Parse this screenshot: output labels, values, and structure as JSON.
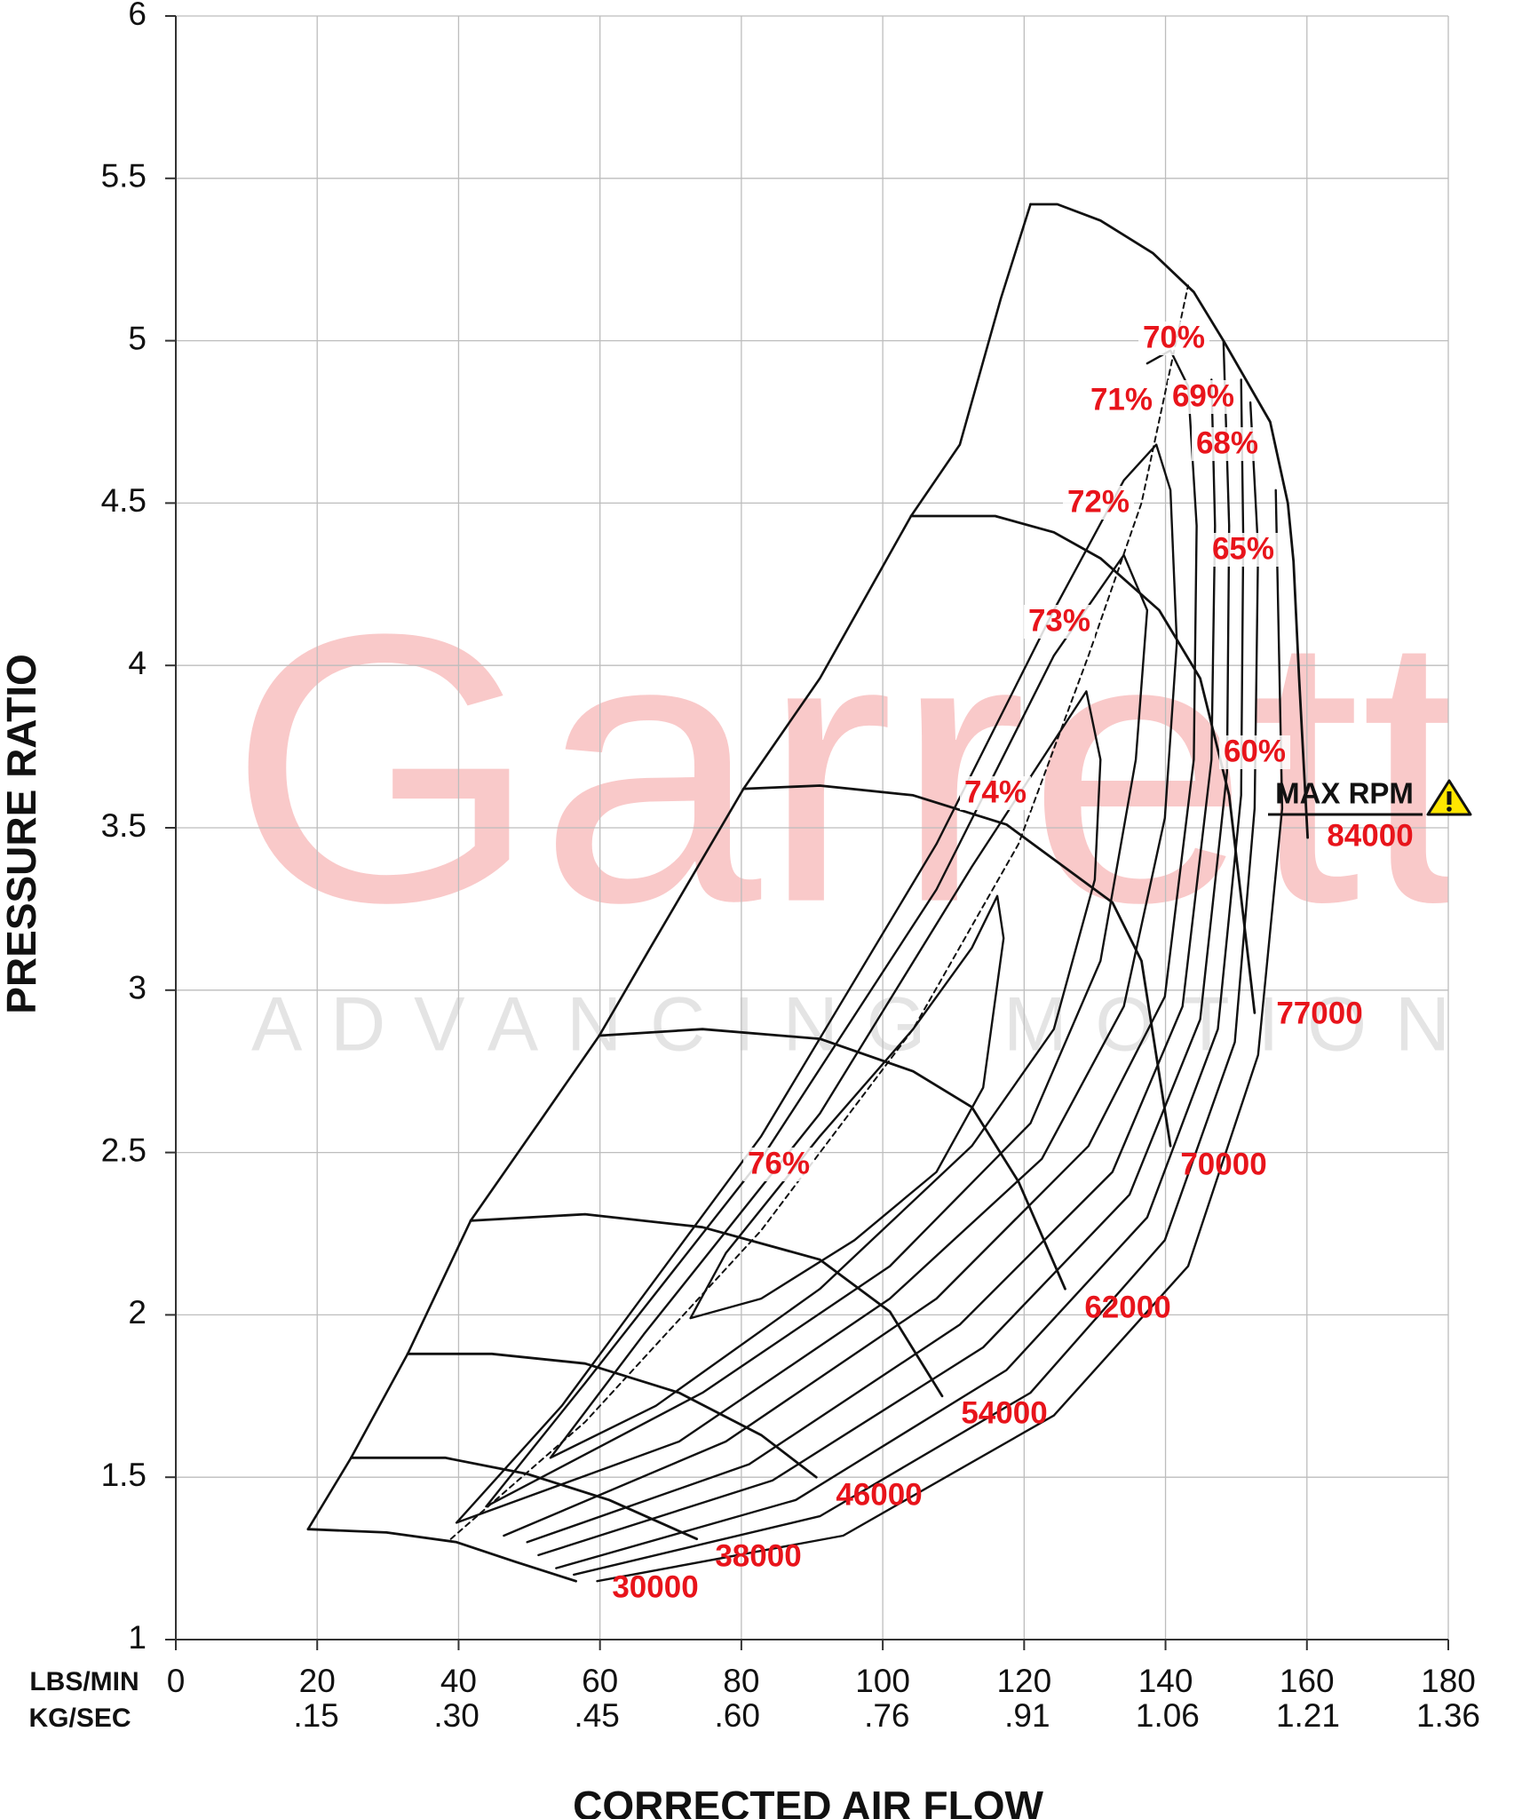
{
  "chart_data": {
    "type": "line",
    "xlabel": "CORRECTED AIR FLOW",
    "ylabel": "PRESSURE RATIO",
    "x_unit": "LBS/MIN",
    "x2_unit": "KG/SEC",
    "xlim": [
      0,
      180
    ],
    "x2lim": [
      0,
      1.36
    ],
    "ylim": [
      1,
      6
    ],
    "xticks": [
      0,
      20,
      40,
      60,
      80,
      100,
      120,
      140,
      160,
      180
    ],
    "x2ticks": [
      {
        "value": 0.15,
        "label": ".15"
      },
      {
        "value": 0.3,
        "label": ".30"
      },
      {
        "value": 0.45,
        "label": ".45"
      },
      {
        "value": 0.6,
        "label": ".60"
      },
      {
        "value": 0.76,
        "label": ".76"
      },
      {
        "value": 0.91,
        "label": ".91"
      },
      {
        "value": 1.06,
        "label": "1.06"
      },
      {
        "value": 1.21,
        "label": "1.21"
      },
      {
        "value": 1.36,
        "label": "1.36"
      }
    ],
    "yticks": [
      1,
      1.5,
      2,
      2.5,
      3,
      3.5,
      4,
      4.5,
      5,
      5.5,
      6
    ],
    "grid": true,
    "line_color": "#111111",
    "label_color": "#e8141b",
    "series": [
      {
        "name": "30000",
        "x": [
          18.7,
          29.8,
          39.7,
          48.0,
          56.6
        ],
        "y": [
          1.34,
          1.33,
          1.3,
          1.24,
          1.18
        ]
      },
      {
        "name": "38000",
        "x": [
          24.8,
          38.1,
          49.7,
          61.3,
          73.7
        ],
        "y": [
          1.56,
          1.56,
          1.51,
          1.43,
          1.31
        ]
      },
      {
        "name": "46000",
        "x": [
          32.8,
          44.7,
          57.9,
          71.2,
          82.8,
          90.6
        ],
        "y": [
          1.88,
          1.88,
          1.85,
          1.76,
          1.63,
          1.5
        ]
      },
      {
        "name": "54000",
        "x": [
          41.7,
          57.9,
          74.5,
          91.1,
          101.0,
          108.4
        ],
        "y": [
          2.29,
          2.31,
          2.27,
          2.17,
          2.01,
          1.75
        ]
      },
      {
        "name": "62000",
        "x": [
          59.9,
          74.5,
          91.1,
          104.3,
          112.6,
          119.2,
          125.8
        ],
        "y": [
          2.86,
          2.88,
          2.85,
          2.75,
          2.64,
          2.41,
          2.08
        ]
      },
      {
        "name": "70000",
        "x": [
          80.3,
          91.1,
          104.3,
          117.5,
          132.5,
          136.6,
          140.7
        ],
        "y": [
          3.62,
          3.63,
          3.6,
          3.51,
          3.27,
          3.09,
          2.52
        ]
      },
      {
        "name": "77000",
        "x": [
          104.0,
          115.9,
          124.2,
          130.8,
          139.1,
          144.9,
          149.0,
          152.6
        ],
        "y": [
          4.46,
          4.46,
          4.41,
          4.33,
          4.17,
          3.96,
          3.6,
          2.93
        ]
      },
      {
        "name": "84000",
        "x": [
          120.9,
          124.7,
          130.8,
          138.2,
          144.0,
          148.2,
          154.8,
          157.3,
          158.1,
          158.9,
          160.1
        ],
        "y": [
          5.42,
          5.42,
          5.37,
          5.27,
          5.15,
          5.0,
          4.75,
          4.5,
          4.32,
          3.96,
          3.47
        ]
      }
    ],
    "efficiency_islands": [
      {
        "name": "76%",
        "x": [
          72.8,
          77.8,
          91.1,
          104.3,
          112.6,
          116.2,
          117.1,
          114.2,
          107.6,
          96.0,
          82.8,
          72.8
        ],
        "y": [
          1.99,
          2.19,
          2.55,
          2.88,
          3.13,
          3.29,
          3.16,
          2.7,
          2.44,
          2.23,
          2.05,
          1.99
        ]
      },
      {
        "name": "74%",
        "x": [
          53.0,
          66.2,
          91.1,
          112.6,
          128.8,
          130.8,
          130.0,
          124.2,
          112.6,
          91.1,
          67.9,
          53.0
        ],
        "y": [
          1.56,
          1.94,
          2.62,
          3.38,
          3.92,
          3.71,
          3.34,
          2.88,
          2.52,
          2.08,
          1.72,
          1.56
        ]
      },
      {
        "name": "73%",
        "x": [
          43.9,
          57.9,
          82.8,
          107.6,
          124.2,
          134.1,
          137.4,
          135.8,
          130.8,
          120.9,
          101.0,
          74.5,
          43.9
        ],
        "y": [
          1.41,
          1.79,
          2.48,
          3.31,
          4.03,
          4.34,
          4.17,
          3.71,
          3.09,
          2.59,
          2.15,
          1.76,
          1.41
        ]
      },
      {
        "name": "72%",
        "x": [
          39.7,
          54.6,
          82.8,
          107.6,
          124.2,
          134.1,
          138.7,
          140.7,
          141.6,
          139.9,
          134.1,
          122.5,
          101.0,
          71.2,
          39.7
        ],
        "y": [
          1.36,
          1.72,
          2.55,
          3.45,
          4.17,
          4.57,
          4.68,
          4.54,
          4.07,
          3.53,
          2.95,
          2.48,
          2.05,
          1.61,
          1.36
        ]
      },
      {
        "name": "71%",
        "x": [
          137.4,
          140.7,
          143.2,
          144.4,
          144.0,
          139.9,
          129.1,
          107.6,
          77.8,
          46.4
        ],
        "y": [
          4.93,
          4.97,
          4.86,
          4.43,
          3.71,
          2.98,
          2.52,
          2.05,
          1.61,
          1.32
        ]
      },
      {
        "name": "70%",
        "x": [
          146.5,
          147.0,
          146.5,
          142.4,
          132.5,
          110.9,
          81.1,
          49.7
        ],
        "y": [
          4.88,
          4.43,
          3.71,
          2.95,
          2.44,
          1.97,
          1.54,
          1.3
        ]
      },
      {
        "name": "69%",
        "x": [
          148.2,
          149.0,
          148.7,
          144.9,
          134.9,
          114.2,
          84.4,
          51.3
        ],
        "y": [
          5.0,
          4.43,
          3.67,
          2.91,
          2.37,
          1.9,
          1.49,
          1.26
        ]
      },
      {
        "name": "68%",
        "x": [
          150.7,
          151.0,
          150.7,
          147.4,
          137.4,
          117.5,
          87.7,
          53.8
        ],
        "y": [
          4.88,
          4.39,
          3.6,
          2.88,
          2.3,
          1.83,
          1.43,
          1.22
        ]
      },
      {
        "name": "65%",
        "x": [
          152.0,
          153.1,
          152.6,
          149.8,
          139.9,
          120.9,
          91.1,
          56.3
        ],
        "y": [
          4.81,
          4.36,
          3.56,
          2.84,
          2.23,
          1.76,
          1.38,
          1.2
        ]
      },
      {
        "name": "60%",
        "x": [
          155.6,
          156.5,
          153.1,
          143.2,
          124.2,
          94.4,
          59.6
        ],
        "y": [
          4.54,
          3.56,
          2.8,
          2.15,
          1.69,
          1.32,
          1.18
        ]
      }
    ],
    "surge_line": {
      "x": [
        18.7,
        24.8,
        32.8,
        41.7,
        51.3,
        59.9,
        67.1,
        80.3,
        91.1,
        104.0,
        110.9,
        116.7,
        120.9
      ],
      "y": [
        1.34,
        1.56,
        1.88,
        2.29,
        2.59,
        2.86,
        3.13,
        3.62,
        3.96,
        4.46,
        4.68,
        5.13,
        5.42
      ]
    },
    "peak_efficiency_line": {
      "x": [
        38.9,
        57.9,
        82.8,
        104.3,
        119.2,
        129.1,
        136.6,
        143.2
      ],
      "y": [
        1.31,
        1.67,
        2.26,
        2.88,
        3.45,
        4.03,
        4.5,
        5.17
      ]
    },
    "max_rpm_annotation": "MAX RPM",
    "watermark": [
      "Garrett",
      "ADVANCING MOTION"
    ]
  }
}
